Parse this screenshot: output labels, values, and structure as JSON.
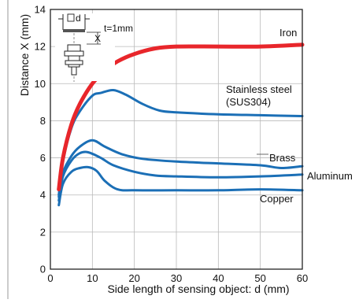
{
  "chart_data": {
    "type": "line",
    "xlabel": "Side length of sensing object: d (mm)",
    "ylabel": "Distance X (mm)",
    "xlim": [
      0,
      60
    ],
    "ylim": [
      0,
      14
    ],
    "x_ticks": [
      0,
      10,
      20,
      30,
      40,
      50,
      60
    ],
    "y_ticks": [
      0,
      2,
      4,
      6,
      8,
      10,
      12,
      14
    ],
    "x_tick_labels": [
      "0",
      "10",
      "20",
      "30",
      "40",
      "50",
      "60"
    ],
    "y_tick_labels": [
      "0",
      "2",
      "4",
      "6",
      "8",
      "10",
      "12",
      "14"
    ],
    "grid": true,
    "series": [
      {
        "name": "Iron",
        "color": "#e8262b",
        "x": [
          2,
          3,
          5,
          7,
          10,
          13,
          16,
          20,
          25,
          30,
          40,
          50,
          60
        ],
        "y": [
          4.3,
          6.0,
          7.8,
          8.9,
          10.0,
          10.7,
          11.2,
          11.6,
          11.9,
          12.0,
          12.0,
          12.0,
          12.1
        ]
      },
      {
        "name": "Stainless steel (SUS304)",
        "color": "#1b6fb6",
        "x": [
          2,
          3,
          5,
          7,
          10,
          12,
          15,
          18,
          22,
          26,
          30,
          40,
          50,
          60
        ],
        "y": [
          4.0,
          5.8,
          7.6,
          8.5,
          9.35,
          9.5,
          9.65,
          9.4,
          8.9,
          8.55,
          8.45,
          8.35,
          8.3,
          8.25
        ]
      },
      {
        "name": "Brass",
        "color": "#1b6fb6",
        "x": [
          2,
          3,
          5,
          7,
          10,
          13,
          17,
          22,
          30,
          40,
          50,
          55,
          60
        ],
        "y": [
          3.9,
          5.2,
          6.1,
          6.6,
          6.95,
          6.6,
          6.2,
          5.95,
          5.8,
          5.7,
          5.6,
          5.45,
          5.55
        ]
      },
      {
        "name": "Aluminum",
        "color": "#1b6fb6",
        "x": [
          2,
          3,
          5,
          7,
          9,
          12,
          15,
          20,
          25,
          30,
          40,
          50,
          60
        ],
        "y": [
          3.7,
          5.0,
          5.85,
          6.25,
          6.3,
          6.0,
          5.6,
          5.25,
          5.05,
          5.0,
          4.95,
          5.0,
          5.1
        ]
      },
      {
        "name": "Copper",
        "color": "#1b6fb6",
        "x": [
          2,
          3,
          5,
          7,
          9,
          11,
          13,
          16,
          20,
          30,
          40,
          50,
          60
        ],
        "y": [
          3.45,
          4.6,
          5.25,
          5.45,
          5.5,
          5.3,
          4.75,
          4.3,
          4.25,
          4.25,
          4.25,
          4.3,
          4.25
        ]
      }
    ],
    "labels": {
      "iron": "Iron",
      "stainless_line1": "Stainless steel",
      "stainless_line2": "(SUS304)",
      "brass": "Brass",
      "aluminum": "Aluminum",
      "copper": "Copper"
    },
    "inset": {
      "d_label": "d",
      "x_label": "X",
      "thickness_label": "t=1mm"
    }
  }
}
